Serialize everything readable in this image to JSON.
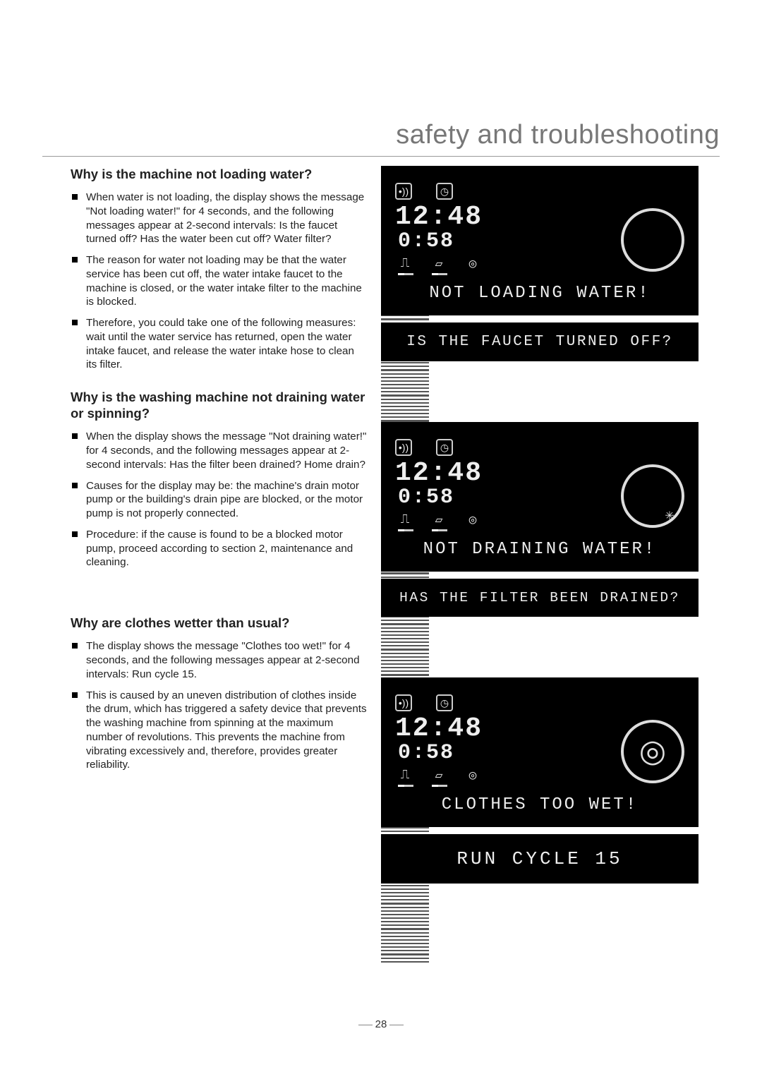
{
  "header": {
    "title": "safety and troubleshooting"
  },
  "page_number": "28",
  "left": {
    "sections": [
      {
        "heading": "Why is the machine not loading water?",
        "bullets": [
          "When water is not loading, the display shows the message \"Not loading water!\" for 4 seconds, and the following messages appear at 2-second intervals: Is the faucet turned off? Has the water been cut off? Water filter?",
          "The reason for water not loading may be that the water service has been cut off, the water intake faucet to the machine is closed, or the water intake filter to the machine is blocked.",
          "Therefore, you could take one of the following measures: wait until the water service has returned, open the water intake faucet, and release the water intake hose to clean its filter."
        ]
      },
      {
        "heading": "Why is the washing machine not draining water or spinning?",
        "bullets": [
          "When the display shows the message \"Not draining water!\" for 4 seconds, and the following messages appear at 2-second intervals: Has the filter been drained? Home drain?",
          "Causes for the display may be: the machine's drain motor pump or the building's drain pipe are blocked, or the motor pump is not properly connected.",
          "Procedure: if the cause is found to be a blocked motor pump, proceed according to section 2, maintenance and cleaning."
        ]
      },
      {
        "heading": "Why are clothes wetter than usual?",
        "bullets": [
          "The display shows the message \"Clothes too wet!\" for 4 seconds, and the following messages appear at 2-second intervals: Run cycle 15.",
          "This is caused by an uneven distribution of clothes inside the drum, which has triggered a safety device that prevents the washing machine from spinning at the maximum number of revolutions. This prevents the machine from vibrating excessively and, therefore, provides greater reliability."
        ]
      }
    ]
  },
  "displays": [
    {
      "time_big": "12:48",
      "time_small": "0:58",
      "knob_symbol": "",
      "main_msg": "NOT LOADING WATER!",
      "sub_msg": "IS THE FAUCET TURNED OFF?"
    },
    {
      "time_big": "12:48",
      "time_small": "0:58",
      "knob_symbol": "✳",
      "main_msg": "NOT DRAINING WATER!",
      "sub_msg": "HAS THE FILTER BEEN DRAINED?"
    },
    {
      "time_big": "12:48",
      "time_small": "0:58",
      "knob_symbol": "◎",
      "main_msg": "CLOTHES TOO WET!",
      "sub_msg": "RUN CYCLE 15"
    }
  ],
  "colors": {
    "display_bg": "#000000",
    "display_fg": "#eeeeee",
    "header_color": "#777777",
    "text_color": "#222222"
  }
}
